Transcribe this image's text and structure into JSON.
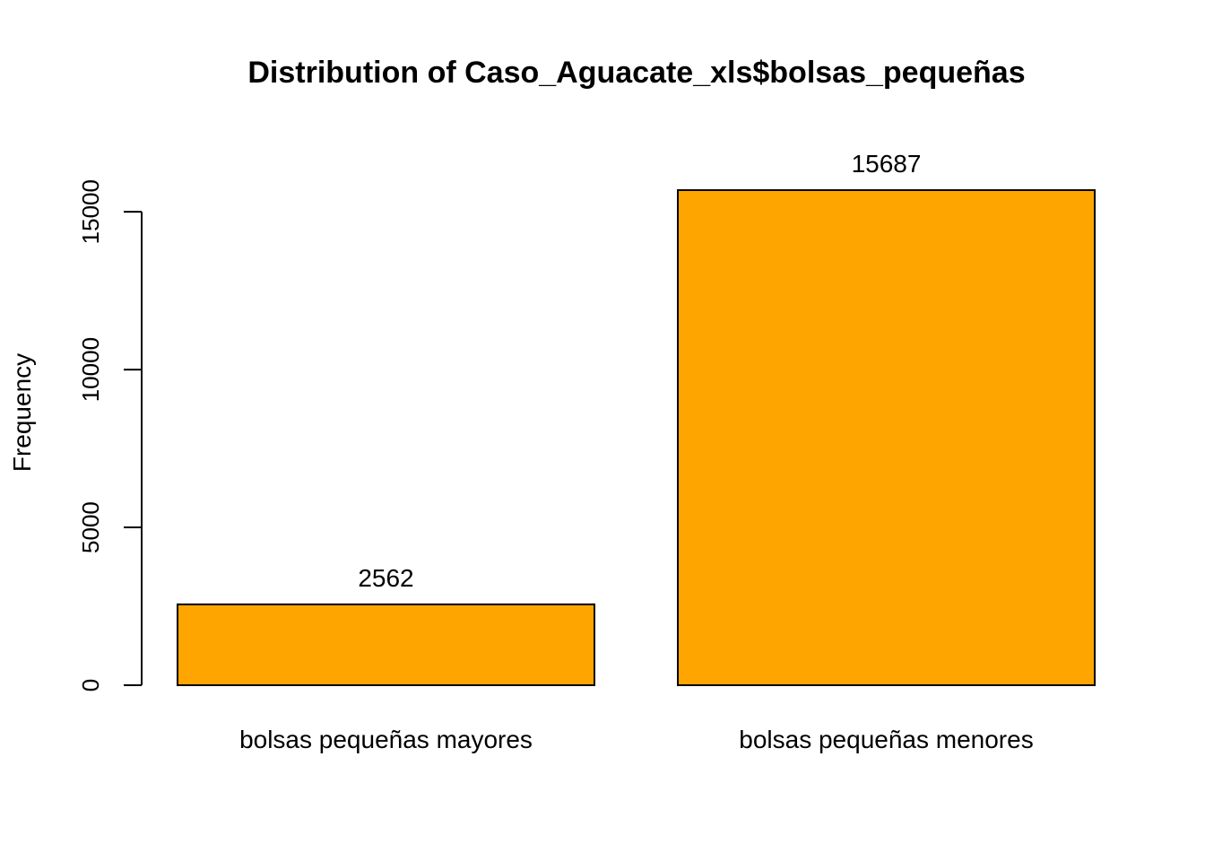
{
  "chart_data": {
    "type": "bar",
    "title": "Distribution of Caso_Aguacate_xls$bolsas_pequeñas",
    "xlabel": "",
    "ylabel": "Frequency",
    "categories": [
      "bolsas pequeñas mayores",
      "bolsas pequeñas menores"
    ],
    "values": [
      2562,
      15687
    ],
    "data_labels": [
      "2562",
      "15687"
    ],
    "yticks": [
      0,
      5000,
      10000,
      15000
    ],
    "ytick_labels": [
      "0",
      "5000",
      "10000",
      "15000"
    ],
    "ylim": [
      0,
      15687
    ],
    "bar_color": "#FFA500",
    "bar_border_color": "#000000",
    "grid": false,
    "legend": "none"
  }
}
